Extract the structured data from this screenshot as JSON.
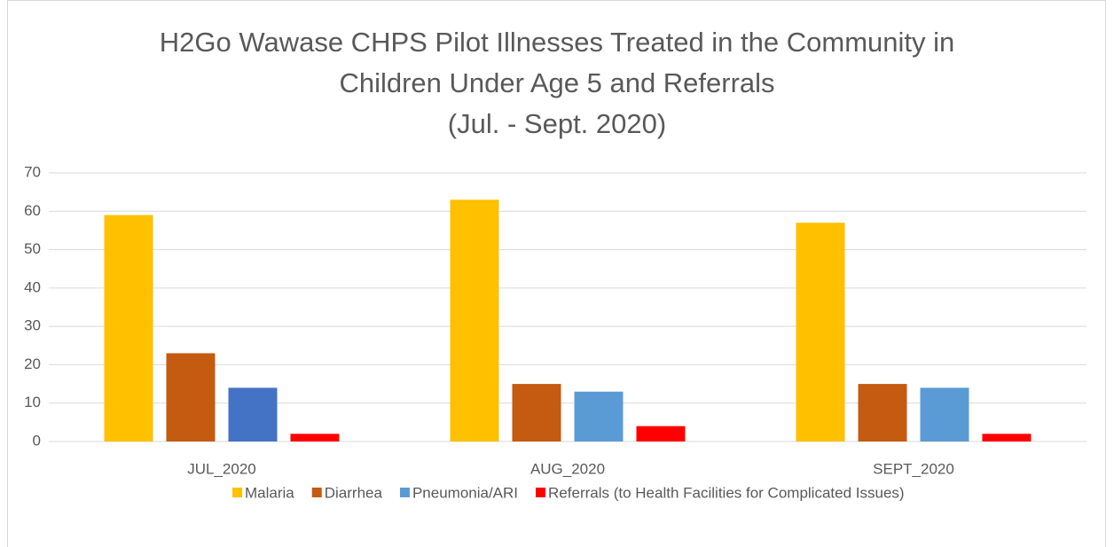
{
  "chart_data": {
    "type": "bar",
    "title": [
      "H2Go Wawase CHPS Pilot Illnesses Treated in the Community in",
      "Children Under Age 5 and Referrals",
      "(Jul. - Sept. 2020)"
    ],
    "categories": [
      "JUL_2020",
      "AUG_2020",
      "SEPT_2020"
    ],
    "series": [
      {
        "name": "Malaria",
        "color": "#ffc000",
        "values": [
          59,
          63,
          57
        ]
      },
      {
        "name": "Diarrhea",
        "color": "#c55a11",
        "values": [
          23,
          15,
          15
        ]
      },
      {
        "name": "Pneumonia/ARI",
        "color": "#5b9bd5",
        "colors": [
          "#4472c4",
          "#5b9bd5",
          "#5b9bd5"
        ],
        "values": [
          14,
          13,
          14
        ]
      },
      {
        "name": "Referrals (to Health Facilities for Complicated Issues)",
        "color": "#ff0000",
        "values": [
          2,
          4,
          2
        ]
      }
    ],
    "ylim": [
      0,
      70
    ],
    "yticks": [
      0,
      10,
      20,
      30,
      40,
      50,
      60,
      70
    ],
    "grid": true,
    "legend": "bottom"
  }
}
